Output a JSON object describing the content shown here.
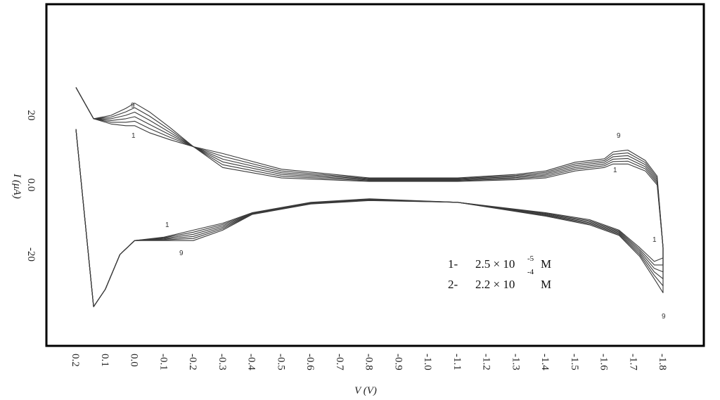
{
  "chart_data": {
    "type": "line",
    "title": "",
    "xlabel": "V (V)",
    "ylabel": "I  (μA)",
    "x_ticks": [
      "0.2",
      "0.1",
      "0.0",
      "-0.1",
      "-0.2",
      "-0.3",
      "-0.4",
      "-0.5",
      "-0.6",
      "-0.7",
      "-0.8",
      "-0.9",
      "-1.0",
      "-1.1",
      "-1.2",
      "-1.3",
      "-1.4",
      "-1.5",
      "-1.6",
      "-1.7",
      "-1.8"
    ],
    "y_ticks": [
      "20",
      "0.0",
      "-20"
    ],
    "xlim": [
      0.2,
      -1.8
    ],
    "ylim": [
      -47,
      45
    ],
    "grid": false,
    "legend": [
      {
        "marker": "1-",
        "mantissa": "2.5 × 10",
        "exponent": "-5",
        "unit": "M"
      },
      {
        "marker": "2-",
        "mantissa": "2.2 × 10",
        "exponent": "-4",
        "unit": "M"
      }
    ],
    "annotations": [
      "9",
      "1",
      "1",
      "9",
      "9",
      "1",
      "1",
      "9"
    ],
    "series": [
      {
        "curve": 1,
        "x": [
          0.2,
          0.14,
          0.08,
          0.03,
          0.0,
          -0.05,
          -0.12,
          -0.2,
          -0.3,
          -0.5,
          -0.8,
          -1.1,
          -1.3,
          -1.4,
          -1.5,
          -1.6,
          -1.63,
          -1.68,
          -1.74,
          -1.78,
          -1.8,
          -1.8,
          -1.77,
          -1.72,
          -1.65,
          -1.55,
          -1.4,
          -1.1,
          -0.8,
          -0.6,
          -0.4,
          -0.3,
          -0.2,
          -0.1,
          0.0,
          0.05,
          0.1,
          0.14,
          0.2
        ],
        "y": [
          28,
          19,
          17.5,
          17,
          17,
          15,
          13,
          11,
          5,
          2,
          1,
          1,
          1.5,
          2,
          4,
          5,
          6,
          6,
          4,
          0,
          -18,
          -21,
          -22,
          -18,
          -13,
          -10,
          -8,
          -5,
          -4,
          -5,
          -8,
          -11,
          -13,
          -15,
          -16,
          -20,
          -30,
          -35,
          16
        ]
      },
      {
        "curve": 2,
        "x": [
          0.2,
          0.14,
          0.08,
          0.03,
          0.0,
          -0.05,
          -0.12,
          -0.2,
          -0.3,
          -0.5,
          -0.8,
          -1.1,
          -1.3,
          -1.4,
          -1.5,
          -1.6,
          -1.63,
          -1.68,
          -1.74,
          -1.78,
          -1.8,
          -1.8,
          -1.77,
          -1.72,
          -1.65,
          -1.55,
          -1.4,
          -1.1,
          -0.8,
          -0.6,
          -0.4,
          -0.3,
          -0.2,
          -0.1,
          0.0,
          0.05,
          0.1,
          0.14,
          0.2
        ],
        "y": [
          28,
          19,
          18,
          18,
          18.3,
          16.2,
          13.7,
          11,
          5.8,
          2.5,
          1.2,
          1.2,
          1.8,
          2.4,
          4.5,
          5.5,
          6.7,
          6.8,
          4.6,
          0.5,
          -18,
          -23,
          -23,
          -18.5,
          -13.3,
          -10.3,
          -8.2,
          -5,
          -4.1,
          -5.1,
          -8.1,
          -11.4,
          -13.6,
          -15.2,
          -16,
          -20,
          -30,
          -35,
          16
        ]
      },
      {
        "curve": 3,
        "x": [
          0.2,
          0.14,
          0.08,
          0.03,
          0.0,
          -0.05,
          -0.12,
          -0.2,
          -0.3,
          -0.5,
          -0.8,
          -1.1,
          -1.3,
          -1.4,
          -1.5,
          -1.6,
          -1.63,
          -1.68,
          -1.74,
          -1.78,
          -1.8,
          -1.8,
          -1.77,
          -1.72,
          -1.65,
          -1.55,
          -1.4,
          -1.1,
          -0.8,
          -0.6,
          -0.4,
          -0.3,
          -0.2,
          -0.1,
          0.0,
          0.05,
          0.1,
          0.14,
          0.2
        ],
        "y": [
          28,
          19,
          18.5,
          19,
          19.6,
          17.4,
          14.4,
          11,
          6.6,
          3,
          1.4,
          1.4,
          2.1,
          2.8,
          5,
          6,
          7.4,
          7.6,
          5.2,
          1,
          -18,
          -25,
          -24,
          -19,
          -13.6,
          -10.6,
          -8.4,
          -5,
          -4.2,
          -5.2,
          -8.2,
          -11.8,
          -14.2,
          -15.4,
          -16,
          -20,
          -30,
          -35,
          16
        ]
      },
      {
        "curve": 4,
        "x": [
          0.2,
          0.14,
          0.08,
          0.03,
          0.0,
          -0.05,
          -0.12,
          -0.2,
          -0.3,
          -0.5,
          -0.8,
          -1.1,
          -1.3,
          -1.4,
          -1.5,
          -1.6,
          -1.63,
          -1.68,
          -1.74,
          -1.78,
          -1.8,
          -1.8,
          -1.77,
          -1.72,
          -1.65,
          -1.55,
          -1.4,
          -1.1,
          -0.8,
          -0.6,
          -0.4,
          -0.3,
          -0.2,
          -0.1,
          0.0,
          0.05,
          0.1,
          0.14,
          0.2
        ],
        "y": [
          28,
          19,
          19,
          20,
          20.9,
          18.6,
          15.1,
          11,
          7.4,
          3.5,
          1.6,
          1.6,
          2.4,
          3.2,
          5.5,
          6.5,
          8.1,
          8.4,
          5.8,
          1.5,
          -18,
          -27,
          -25,
          -19.5,
          -13.9,
          -10.9,
          -8.6,
          -5,
          -4.3,
          -5.3,
          -8.3,
          -12.2,
          -14.8,
          -15.6,
          -16,
          -20,
          -30,
          -35,
          16
        ]
      },
      {
        "curve": 5,
        "x": [
          0.2,
          0.14,
          0.08,
          0.03,
          0.0,
          -0.05,
          -0.12,
          -0.2,
          -0.3,
          -0.5,
          -0.8,
          -1.1,
          -1.3,
          -1.4,
          -1.5,
          -1.6,
          -1.63,
          -1.68,
          -1.74,
          -1.78,
          -1.8,
          -1.8,
          -1.77,
          -1.72,
          -1.65,
          -1.55,
          -1.4,
          -1.1,
          -0.8,
          -0.6,
          -0.4,
          -0.3,
          -0.2,
          -0.1,
          0.0,
          0.05,
          0.1,
          0.14,
          0.2
        ],
        "y": [
          28,
          19,
          19.5,
          21,
          22.2,
          19.8,
          15.8,
          11,
          8.2,
          4,
          1.8,
          1.8,
          2.7,
          3.6,
          6,
          7,
          8.8,
          9.2,
          6.4,
          2,
          -18,
          -29,
          -26,
          -20,
          -14.2,
          -11.2,
          -8.8,
          -5,
          -4.4,
          -5.4,
          -8.4,
          -12.6,
          -15.4,
          -15.8,
          -16,
          -20,
          -30,
          -35,
          16
        ]
      },
      {
        "curve": 6,
        "x": [
          0.2,
          0.14,
          0.08,
          0.03,
          0.0,
          -0.05,
          -0.12,
          -0.2,
          -0.3,
          -0.5,
          -0.8,
          -1.1,
          -1.3,
          -1.4,
          -1.5,
          -1.6,
          -1.63,
          -1.68,
          -1.74,
          -1.78,
          -1.8,
          -1.8,
          -1.77,
          -1.72,
          -1.65,
          -1.55,
          -1.4,
          -1.1,
          -0.8,
          -0.6,
          -0.4,
          -0.3,
          -0.2,
          -0.1,
          0.0,
          0.05,
          0.1,
          0.14,
          0.2
        ],
        "y": [
          28,
          19,
          20,
          22,
          23.5,
          21,
          16.5,
          11,
          9,
          4.5,
          2,
          2,
          3,
          4,
          6.5,
          7.5,
          9.5,
          10,
          7,
          2.5,
          -18,
          -31,
          -27,
          -20.5,
          -14.5,
          -11.5,
          -9,
          -5,
          -4.5,
          -5.5,
          -8.5,
          -13,
          -16,
          -16,
          -16,
          -20,
          -30,
          -35,
          16
        ]
      }
    ]
  }
}
